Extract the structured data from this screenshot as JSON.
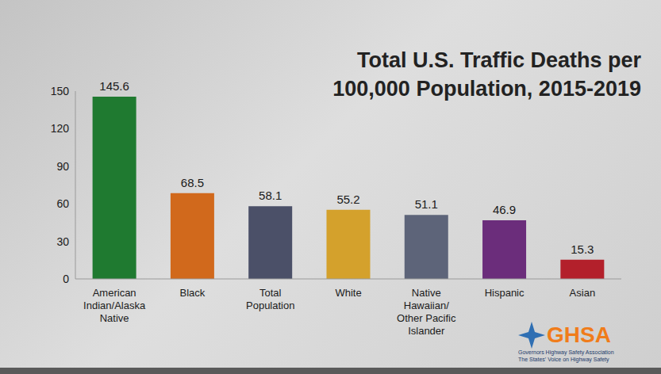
{
  "chart_data": {
    "type": "bar",
    "title": "Total U.S. Traffic Deaths per 100,000 Population, 2015-2019",
    "categories": [
      "American Indian/Alaska Native",
      "Black",
      "Total Population",
      "White",
      "Native Hawaiian/Other Pacific Islander",
      "Hispanic",
      "Asian"
    ],
    "values": [
      145.6,
      68.5,
      58.1,
      55.2,
      51.1,
      46.9,
      15.3
    ],
    "colors": [
      "#1f7a30",
      "#d1691c",
      "#4b5068",
      "#d4a12c",
      "#5d6479",
      "#6b2d7b",
      "#b3202b"
    ],
    "ylim": [
      0,
      150
    ],
    "yticks": [
      0,
      30,
      60,
      90,
      120,
      150
    ],
    "grid": false,
    "data_labels": true,
    "annotations": [
      "GHSA",
      "Governors Highway Safety Association",
      "The States' Voice on Highway Safety"
    ]
  }
}
